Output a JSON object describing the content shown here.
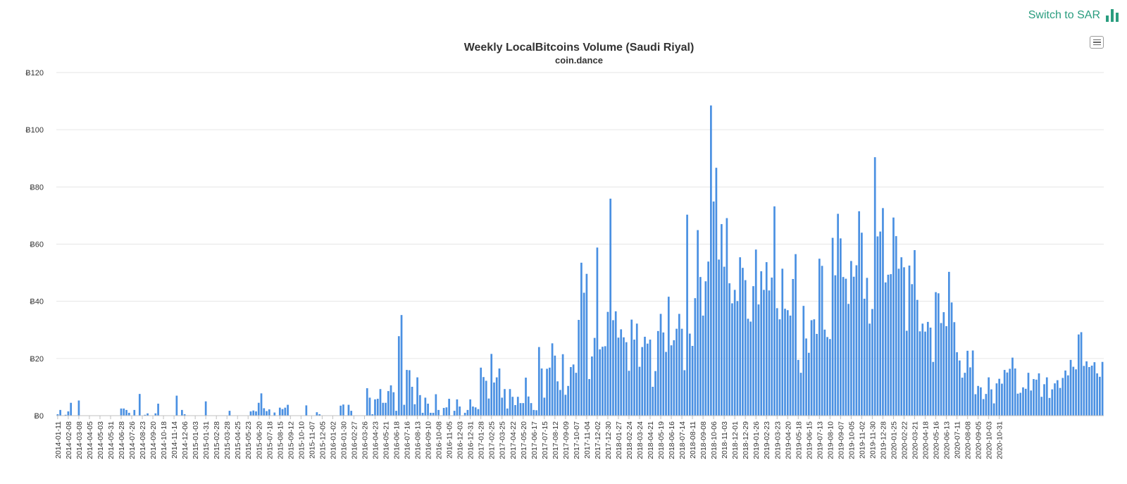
{
  "switch_link": {
    "label": "Switch to SAR",
    "icon": "bar-chart-icon"
  },
  "menu": {
    "icon": "hamburger-menu-icon"
  },
  "colors": {
    "bar": "#4a90e2",
    "grid": "#e6e6e6",
    "accent": "#2a9d7f"
  },
  "chart_data": {
    "type": "bar",
    "title": "Weekly LocalBitcoins Volume (Saudi Riyal)",
    "subtitle": "coin.dance",
    "xlabel": "",
    "ylabel": "",
    "ylim": [
      0,
      120
    ],
    "yticks": [
      0,
      20,
      40,
      60,
      80,
      100,
      120
    ],
    "ytick_labels": [
      "Ƀ0",
      "Ƀ20",
      "Ƀ40",
      "Ƀ60",
      "Ƀ80",
      "Ƀ100",
      "Ƀ120"
    ],
    "start_date": "2014-01-11",
    "week_step_days": 7,
    "tick_every_weeks": 4,
    "xtick_labels": [
      "2014-01-11",
      "2014-02-08",
      "2014-03-08",
      "2014-04-05",
      "2014-05-03",
      "2014-05-31",
      "2014-06-28",
      "2014-07-26",
      "2014-08-23",
      "2014-09-20",
      "2014-10-18",
      "2014-11-14",
      "2014-12-06",
      "2015-01-03",
      "2015-01-31",
      "2015-02-28",
      "2015-03-28",
      "2015-04-25",
      "2015-05-23",
      "2015-06-20",
      "2015-07-18",
      "2015-08-15",
      "2015-09-12",
      "2015-10-10",
      "2015-11-07",
      "2015-12-05",
      "2016-01-02",
      "2016-01-30",
      "2016-02-27",
      "2016-03-26",
      "2016-04-23",
      "2016-05-21",
      "2016-06-18",
      "2016-07-16",
      "2016-08-13",
      "2016-09-10",
      "2016-10-08",
      "2016-11-05",
      "2016-12-03",
      "2016-12-31",
      "2017-01-28",
      "2017-02-25",
      "2017-03-25",
      "2017-04-22",
      "2017-05-20",
      "2017-06-17",
      "2017-07-15",
      "2017-08-12",
      "2017-09-09",
      "2017-10-07",
      "2017-11-04",
      "2017-12-02",
      "2017-12-30",
      "2018-01-27",
      "2018-02-24",
      "2018-03-24",
      "2018-04-21",
      "2018-05-19",
      "2018-06-16",
      "2018-07-14",
      "2018-08-11",
      "2018-09-08",
      "2018-10-06",
      "2018-11-03",
      "2018-12-01",
      "2018-12-29",
      "2019-01-26",
      "2019-02-23",
      "2019-03-23",
      "2019-04-20",
      "2019-05-18",
      "2019-06-15",
      "2019-07-13",
      "2019-08-10",
      "2019-09-07",
      "2019-10-05",
      "2019-11-02",
      "2019-11-30",
      "2019-12-28",
      "2020-01-25",
      "2020-02-22",
      "2020-03-21",
      "2020-04-18",
      "2020-05-16",
      "2020-06-13",
      "2020-07-11",
      "2020-08-08",
      "2020-09-05",
      "2020-10-03",
      "2020-10-31"
    ],
    "values": [
      0.5,
      2,
      0,
      0.3,
      1.5,
      4.5,
      0,
      0,
      5.3,
      0,
      0,
      0,
      0,
      0,
      0,
      0,
      0,
      0,
      0,
      0,
      0,
      0,
      0,
      0,
      2.5,
      2.5,
      2,
      1,
      0,
      2,
      0,
      7.6,
      0,
      0.3,
      0.8,
      0,
      0,
      0.8,
      4.2,
      0,
      0,
      0,
      0,
      0,
      0,
      7,
      0,
      2,
      0.5,
      0,
      0,
      0,
      0,
      0,
      0,
      0,
      5,
      0,
      0,
      0,
      0,
      0,
      0,
      0,
      0,
      1.7,
      0,
      0,
      0,
      0,
      0,
      0,
      0,
      1.5,
      1.8,
      1.5,
      4.5,
      7.8,
      2.6,
      1.6,
      2.2,
      0,
      1.1,
      0,
      2.8,
      2.3,
      2.8,
      3.8,
      0,
      0,
      0,
      0,
      0,
      0,
      3.6,
      0,
      0,
      0,
      1.2,
      0.5,
      0,
      0,
      0,
      0,
      0,
      0,
      0,
      3.5,
      3.9,
      0,
      3.8,
      1.7,
      0,
      0,
      0,
      0,
      0,
      9.6,
      6.3,
      0.5,
      5.7,
      5.9,
      9.3,
      4.5,
      4.5,
      8.6,
      10.6,
      8.2,
      1.7,
      27.8,
      35.2,
      3.8,
      16,
      15.9,
      10.1,
      4,
      13.4,
      7.2,
      1,
      6.3,
      4.2,
      1,
      1,
      7.5,
      2,
      0,
      2.7,
      2.9,
      5.9,
      0,
      1.7,
      5.7,
      3.2,
      0,
      1,
      2,
      5.7,
      3.2,
      2.9,
      2.3,
      16.8,
      13.5,
      12.2,
      6,
      21.6,
      11.6,
      13.4,
      16.5,
      6.3,
      9.3,
      2.5,
      9.3,
      6.6,
      3.7,
      6.6,
      4.4,
      4.4,
      13.3,
      6.7,
      4.4,
      2,
      1.9,
      24,
      16.5,
      6.3,
      16.4,
      16.8,
      25.3,
      21,
      12,
      9,
      21.5,
      7.3,
      10.4,
      17,
      17.9,
      15,
      33.5,
      53.5,
      43,
      49.6,
      12.8,
      20.7,
      27.2,
      58.8,
      23.2,
      24.1,
      24.3,
      36.3,
      75.9,
      33.4,
      36.5,
      27.3,
      30.2,
      27.4,
      25.7,
      15.7,
      33.6,
      26.6,
      32.2,
      17.1,
      24,
      27.6,
      25.2,
      26.6,
      10.1,
      15.6,
      29.6,
      35.6,
      29.1,
      22.3,
      41.6,
      24.6,
      26.4,
      30.4,
      35.6,
      30.4,
      15.9,
      70.3,
      28.7,
      24.4,
      41.1,
      64.9,
      48.5,
      35,
      47,
      53.9,
      108.5,
      74.9,
      86.7,
      54.6,
      67,
      52.1,
      69.1,
      46.3,
      39.3,
      44,
      40.1,
      55.4,
      51.7,
      47.4,
      33.9,
      32.9,
      45.3,
      58.1,
      38.9,
      50.5,
      44,
      53.7,
      43.8,
      48.3,
      73.2,
      37.6,
      33.7,
      51.4,
      37.4,
      36.9,
      35,
      47.8,
      56.5,
      19.5,
      15,
      38.4,
      27,
      22,
      33.4,
      33.7,
      28.6,
      54.9,
      52.4,
      30.1,
      27.5,
      26.8,
      62.2,
      49.1,
      70.6,
      62,
      48.5,
      47.9,
      39.1,
      54.1,
      48.6,
      52.6,
      71.5,
      64,
      40.9,
      48.2,
      32.2,
      37.3,
      90.4,
      62.7,
      64.4,
      72.6,
      46.6,
      49.3,
      49.5,
      69.3,
      62.8,
      51.4,
      55.4,
      51.9,
      29.7,
      52.5,
      46,
      57.9,
      40.5,
      29.5,
      32.2,
      29.4,
      32.8,
      30.8,
      18.8,
      43.2,
      42.8,
      32.4,
      36.2,
      31.3,
      50.3,
      39.6,
      32.7,
      22.2,
      19.3,
      13.3,
      15,
      22.7,
      16.9,
      22.8,
      7.5,
      10.4,
      9.9,
      5.8,
      7.6,
      13.4,
      9.2,
      4.3,
      11.3,
      12.9,
      11.2,
      16,
      15.1,
      16.4,
      20.3,
      16.5,
      7.7,
      8,
      9.9,
      9.4,
      15,
      8.8,
      12.8,
      12.6,
      14.8,
      6.6,
      11,
      13.4,
      6.2,
      9.2,
      11.3,
      12.4,
      9.7,
      13.2,
      15.8,
      14.1,
      19.5,
      17.1,
      16.2,
      28.4,
      29.2,
      17.4,
      19,
      17,
      17.5,
      18.7,
      14.8,
      13.6,
      18.8
    ]
  }
}
